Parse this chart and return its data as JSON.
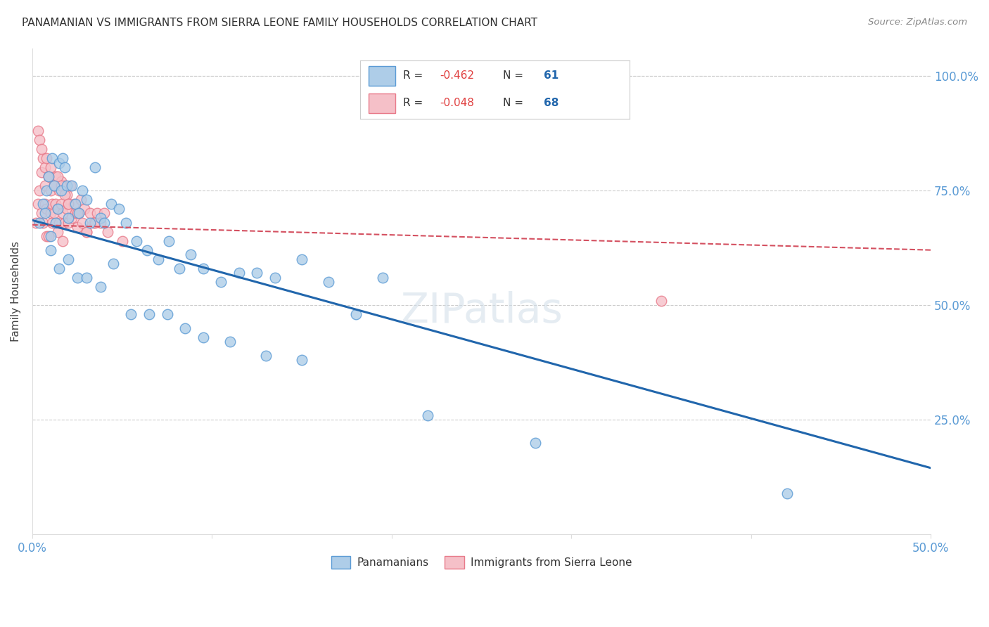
{
  "title": "PANAMANIAN VS IMMIGRANTS FROM SIERRA LEONE FAMILY HOUSEHOLDS CORRELATION CHART",
  "source": "Source: ZipAtlas.com",
  "ylabel": "Family Households",
  "xlim": [
    0.0,
    0.5
  ],
  "ylim": [
    0.0,
    1.06
  ],
  "xtick_positions": [
    0.0,
    0.1,
    0.2,
    0.3,
    0.4,
    0.5
  ],
  "xtick_labels": [
    "0.0%",
    "",
    "",
    "",
    "",
    "50.0%"
  ],
  "ytick_positions": [
    0.25,
    0.5,
    0.75,
    1.0
  ],
  "ytick_labels": [
    "25.0%",
    "50.0%",
    "75.0%",
    "100.0%"
  ],
  "blue_face": "#aecde8",
  "blue_edge": "#5b9bd5",
  "pink_face": "#f5c0c8",
  "pink_edge": "#e87a8a",
  "blue_trend_color": "#2166ac",
  "pink_trend_color": "#d45060",
  "grid_color": "#cccccc",
  "watermark_color": "#d0dde8",
  "blue_trend_x": [
    0.0,
    0.5
  ],
  "blue_trend_y": [
    0.685,
    0.145
  ],
  "pink_trend_x": [
    0.0,
    0.5
  ],
  "pink_trend_y": [
    0.675,
    0.62
  ],
  "blue_x": [
    0.004,
    0.006,
    0.007,
    0.008,
    0.009,
    0.01,
    0.011,
    0.012,
    0.013,
    0.014,
    0.015,
    0.016,
    0.017,
    0.018,
    0.019,
    0.02,
    0.022,
    0.024,
    0.026,
    0.028,
    0.03,
    0.032,
    0.035,
    0.038,
    0.04,
    0.044,
    0.048,
    0.052,
    0.058,
    0.064,
    0.07,
    0.076,
    0.082,
    0.088,
    0.095,
    0.105,
    0.115,
    0.125,
    0.135,
    0.15,
    0.165,
    0.18,
    0.195,
    0.01,
    0.015,
    0.02,
    0.025,
    0.03,
    0.038,
    0.045,
    0.055,
    0.065,
    0.075,
    0.085,
    0.095,
    0.11,
    0.13,
    0.15,
    0.22,
    0.28,
    0.42
  ],
  "blue_y": [
    0.68,
    0.72,
    0.7,
    0.75,
    0.78,
    0.65,
    0.82,
    0.76,
    0.68,
    0.71,
    0.81,
    0.75,
    0.82,
    0.8,
    0.76,
    0.69,
    0.76,
    0.72,
    0.7,
    0.75,
    0.73,
    0.68,
    0.8,
    0.69,
    0.68,
    0.72,
    0.71,
    0.68,
    0.64,
    0.62,
    0.6,
    0.64,
    0.58,
    0.61,
    0.58,
    0.55,
    0.57,
    0.57,
    0.56,
    0.6,
    0.55,
    0.48,
    0.56,
    0.62,
    0.58,
    0.6,
    0.56,
    0.56,
    0.54,
    0.59,
    0.48,
    0.48,
    0.48,
    0.45,
    0.43,
    0.42,
    0.39,
    0.38,
    0.26,
    0.2,
    0.09
  ],
  "pink_x": [
    0.002,
    0.003,
    0.004,
    0.005,
    0.005,
    0.006,
    0.006,
    0.007,
    0.007,
    0.008,
    0.008,
    0.009,
    0.009,
    0.01,
    0.01,
    0.011,
    0.011,
    0.012,
    0.012,
    0.013,
    0.013,
    0.014,
    0.014,
    0.015,
    0.015,
    0.016,
    0.016,
    0.017,
    0.017,
    0.018,
    0.018,
    0.019,
    0.019,
    0.02,
    0.02,
    0.021,
    0.022,
    0.023,
    0.024,
    0.025,
    0.026,
    0.027,
    0.028,
    0.029,
    0.03,
    0.032,
    0.034,
    0.036,
    0.038,
    0.04,
    0.003,
    0.004,
    0.005,
    0.007,
    0.008,
    0.009,
    0.01,
    0.012,
    0.014,
    0.016,
    0.018,
    0.02,
    0.025,
    0.03,
    0.035,
    0.042,
    0.05,
    0.35
  ],
  "pink_y": [
    0.68,
    0.72,
    0.75,
    0.79,
    0.7,
    0.82,
    0.68,
    0.72,
    0.76,
    0.65,
    0.71,
    0.78,
    0.65,
    0.7,
    0.75,
    0.72,
    0.68,
    0.76,
    0.7,
    0.72,
    0.78,
    0.66,
    0.71,
    0.75,
    0.68,
    0.72,
    0.77,
    0.64,
    0.7,
    0.76,
    0.68,
    0.71,
    0.74,
    0.68,
    0.72,
    0.76,
    0.69,
    0.72,
    0.7,
    0.67,
    0.7,
    0.73,
    0.68,
    0.71,
    0.66,
    0.7,
    0.68,
    0.7,
    0.68,
    0.7,
    0.88,
    0.86,
    0.84,
    0.8,
    0.82,
    0.78,
    0.8,
    0.76,
    0.78,
    0.76,
    0.74,
    0.72,
    0.7,
    0.66,
    0.68,
    0.66,
    0.64,
    0.51
  ]
}
